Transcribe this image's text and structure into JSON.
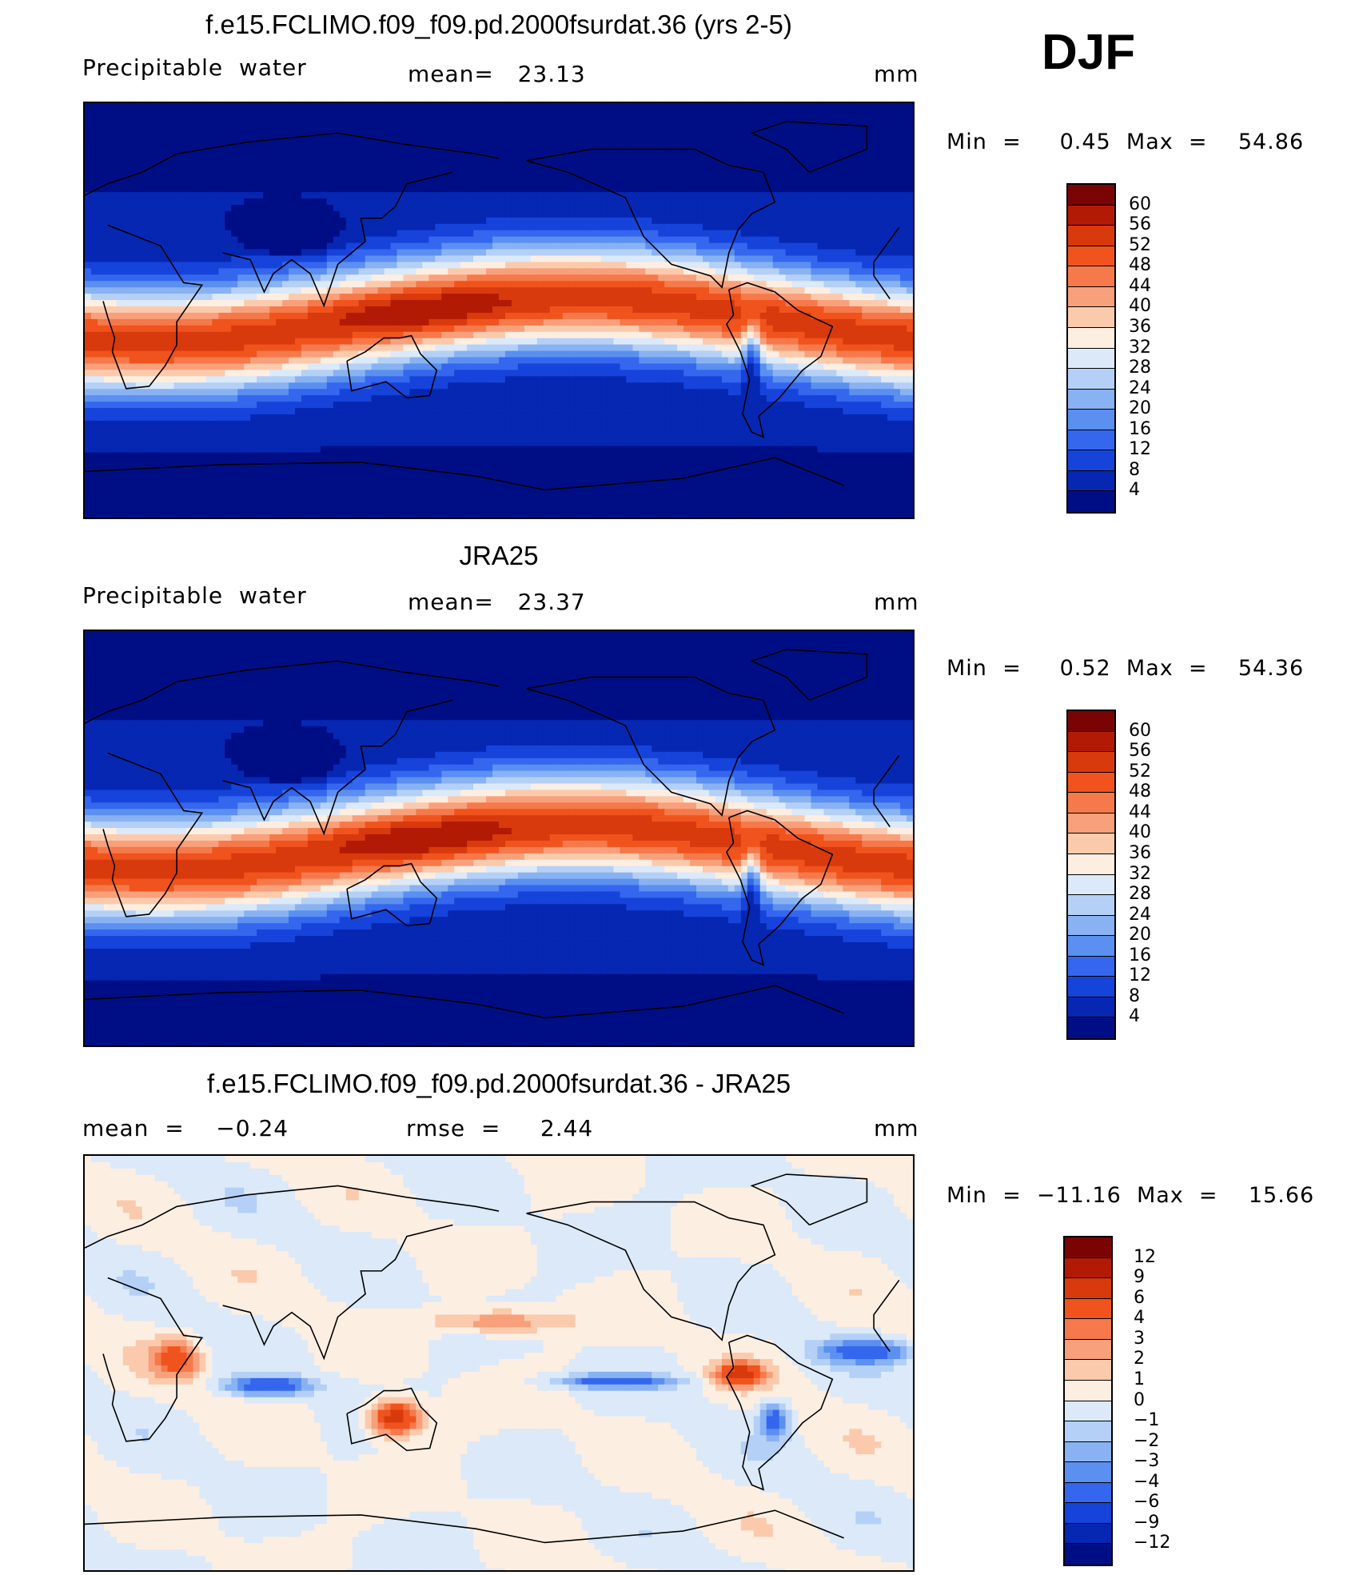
{
  "season": "DJF",
  "panels": [
    {
      "title": "f.e15.FCLIMO.f09_f09.pd.2000fsurdat.36 (yrs 2-5)",
      "left_label": "Precipitable  water",
      "center_label": "mean=   23.13",
      "units": "mm",
      "minmax": "Min  =     0.45  Max  =    54.86",
      "colorbar": {
        "levels": [
          "60",
          "56",
          "52",
          "48",
          "44",
          "40",
          "36",
          "32",
          "28",
          "24",
          "20",
          "16",
          "12",
          "8",
          "4"
        ],
        "colors": [
          "#7a0403",
          "#b21a05",
          "#d83a0d",
          "#f0531d",
          "#f5794a",
          "#f8a07b",
          "#fbcaac",
          "#fdeee2",
          "#dbe9f8",
          "#b4d0f6",
          "#89b2f2",
          "#5b8ff0",
          "#3466ee",
          "#1643d9",
          "#0627b2",
          "#000e85"
        ]
      },
      "field": "pw"
    },
    {
      "title": "JRA25",
      "left_label": "Precipitable  water",
      "center_label": "mean=   23.37",
      "units": "mm",
      "minmax": "Min  =     0.52  Max  =    54.36",
      "colorbar": {
        "levels": [
          "60",
          "56",
          "52",
          "48",
          "44",
          "40",
          "36",
          "32",
          "28",
          "24",
          "20",
          "16",
          "12",
          "8",
          "4"
        ],
        "colors": [
          "#7a0403",
          "#b21a05",
          "#d83a0d",
          "#f0531d",
          "#f5794a",
          "#f8a07b",
          "#fbcaac",
          "#fdeee2",
          "#dbe9f8",
          "#b4d0f6",
          "#89b2f2",
          "#5b8ff0",
          "#3466ee",
          "#1643d9",
          "#0627b2",
          "#000e85"
        ]
      },
      "field": "pw"
    },
    {
      "title": "f.e15.FCLIMO.f09_f09.pd.2000fsurdat.36 - JRA25",
      "left_label": "mean  =    −0.24",
      "center_label": "rmse  =     2.44",
      "units": "mm",
      "minmax": "Min  =  −11.16  Max  =    15.66",
      "colorbar": {
        "levels": [
          "12",
          "9",
          "6",
          "4",
          "3",
          "2",
          "1",
          "0",
          "−1",
          "−2",
          "−3",
          "−4",
          "−6",
          "−9",
          "−12"
        ],
        "colors": [
          "#7a0403",
          "#b21a05",
          "#d83a0d",
          "#f0531d",
          "#f5794a",
          "#f8a07b",
          "#fbcaac",
          "#fdeee2",
          "#dbe9f8",
          "#b4d0f6",
          "#89b2f2",
          "#5b8ff0",
          "#3466ee",
          "#1643d9",
          "#0627b2",
          "#000e85"
        ]
      },
      "field": "diff"
    }
  ]
}
